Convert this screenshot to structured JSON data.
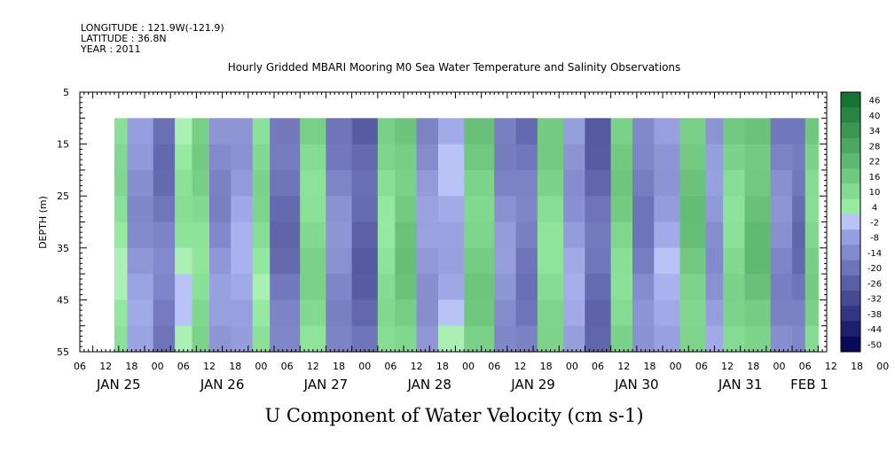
{
  "header": {
    "longitude": "LONGITUDE : 121.9W(-121.9)",
    "latitude": "LATITUDE : 36.8N",
    "year": "YEAR : 2011"
  },
  "chart_data": {
    "type": "heatmap",
    "title": "Hourly Gridded MBARI Mooring M0 Sea Water Temperature and Salinity Observations",
    "xlabel": "U Component of Water Velocity (cm s-1)",
    "ylabel": "DEPTH (m)",
    "ylim": [
      55,
      5
    ],
    "y_ticks": [
      "5",
      "15",
      "25",
      "35",
      "45",
      "55"
    ],
    "x_hour_ticks": [
      "06",
      "12",
      "18",
      "00",
      "06",
      "12",
      "18",
      "00",
      "06",
      "12",
      "18",
      "00",
      "06",
      "12",
      "18",
      "00",
      "06",
      "12",
      "18",
      "00",
      "06",
      "12",
      "18",
      "00",
      "06",
      "12",
      "18",
      "00",
      "06",
      "12",
      "18",
      "00"
    ],
    "x_day_labels": [
      "JAN 25",
      "JAN 26",
      "JAN 27",
      "JAN 28",
      "JAN 29",
      "JAN 30",
      "JAN 31",
      "FEB 1"
    ],
    "data_depth_range": [
      10,
      55
    ],
    "data_time_start": "2011-01-25 11:00",
    "data_time_end": "2011-02-01 06:00",
    "colorbar": {
      "labels": [
        "46",
        "40",
        "34",
        "28",
        "22",
        "16",
        "10",
        "4",
        "-2",
        "-8",
        "-14",
        "-20",
        "-26",
        "-32",
        "-38",
        "-44",
        "-50"
      ],
      "range": [
        -50,
        50
      ]
    },
    "pattern_description": "Alternating bands of positive (green) and negative (blue) velocity with ~12-hour tidal oscillation; values mostly between -30 and +25 cm/s",
    "band_sequence": [
      {
        "start": "2011-01-25 11:00",
        "value": 6
      },
      {
        "start": "2011-01-25 14:00",
        "value": -10
      },
      {
        "start": "2011-01-25 20:00",
        "value": -18
      },
      {
        "start": "2011-01-26 01:00",
        "value": 4
      },
      {
        "start": "2011-01-26 05:00",
        "value": 10
      },
      {
        "start": "2011-01-26 09:00",
        "value": -12
      },
      {
        "start": "2011-01-26 14:00",
        "value": -6
      },
      {
        "start": "2011-01-26 19:00",
        "value": 8
      },
      {
        "start": "2011-01-26 23:00",
        "value": -20
      },
      {
        "start": "2011-01-27 06:00",
        "value": 10
      },
      {
        "start": "2011-01-27 12:00",
        "value": -14
      },
      {
        "start": "2011-01-27 18:00",
        "value": -24
      },
      {
        "start": "2011-01-28 00:00",
        "value": 8
      },
      {
        "start": "2011-01-28 04:00",
        "value": 16
      },
      {
        "start": "2011-01-28 09:00",
        "value": -10
      },
      {
        "start": "2011-01-28 14:00",
        "value": -4
      },
      {
        "start": "2011-01-28 20:00",
        "value": 14
      },
      {
        "start": "2011-01-29 03:00",
        "value": -12
      },
      {
        "start": "2011-01-29 08:00",
        "value": -18
      },
      {
        "start": "2011-01-29 13:00",
        "value": 10
      },
      {
        "start": "2011-01-29 19:00",
        "value": -8
      },
      {
        "start": "2011-01-30 00:00",
        "value": -22
      },
      {
        "start": "2011-01-30 06:00",
        "value": 12
      },
      {
        "start": "2011-01-30 11:00",
        "value": -16
      },
      {
        "start": "2011-01-30 16:00",
        "value": -6
      },
      {
        "start": "2011-01-30 22:00",
        "value": 16
      },
      {
        "start": "2011-01-31 04:00",
        "value": -10
      },
      {
        "start": "2011-01-31 08:00",
        "value": 10
      },
      {
        "start": "2011-01-31 13:00",
        "value": 18
      },
      {
        "start": "2011-01-31 19:00",
        "value": -14
      },
      {
        "start": "2011-02-01 00:00",
        "value": -20
      },
      {
        "start": "2011-02-01 03:00",
        "value": 12
      }
    ]
  }
}
